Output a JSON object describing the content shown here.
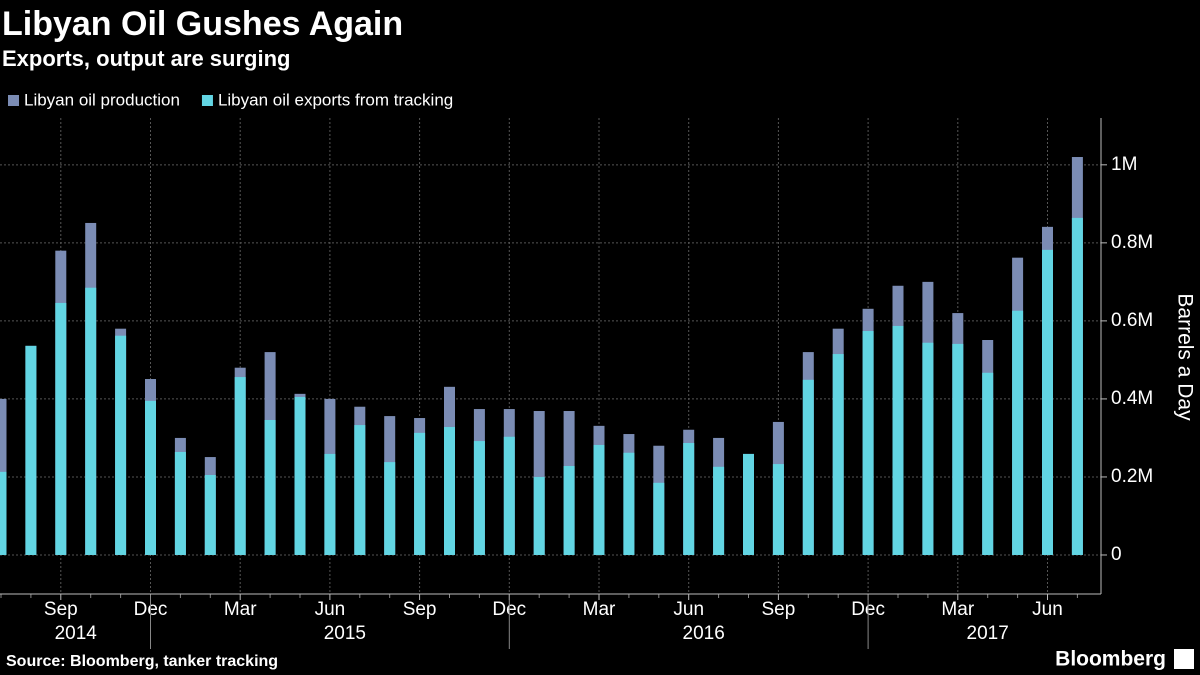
{
  "chart_data": {
    "type": "overlap_bar",
    "title": "Libyan Oil Gushes Again",
    "subtitle": "Exports, output are surging",
    "y_axis_label": "Barrels a Day",
    "source": "Source: Bloomberg, tanker tracking",
    "brand": "Bloomberg",
    "categories": [
      null,
      null,
      "Sep",
      null,
      null,
      "Dec",
      null,
      null,
      "Mar",
      null,
      null,
      "Jun",
      null,
      null,
      "Sep",
      null,
      null,
      "Dec",
      null,
      null,
      "Mar",
      null,
      null,
      "Jun",
      null,
      null,
      "Sep",
      null,
      null,
      "Dec",
      null,
      null,
      "Mar",
      null,
      null,
      "Jun",
      null
    ],
    "years": [
      "2014",
      null,
      null,
      null,
      null,
      null,
      "2015",
      null,
      null,
      null,
      null,
      null,
      null,
      null,
      null,
      null,
      null,
      null,
      "2016",
      null,
      null,
      null,
      null,
      null,
      null,
      null,
      null,
      null,
      null,
      null,
      "2017",
      null,
      null,
      null,
      null,
      null,
      null
    ],
    "series": [
      {
        "name": "Libyan oil production",
        "color": "#7b8cb4",
        "values": [
          400000,
          536000,
          780000,
          851000,
          580000,
          451000,
          300000,
          251000,
          480000,
          520000,
          413000,
          400000,
          380000,
          356000,
          351000,
          431000,
          374000,
          374000,
          369000,
          369000,
          331000,
          310000,
          280000,
          321000,
          300000,
          259000,
          341000,
          520000,
          580000,
          631000,
          690000,
          700000,
          620000,
          551000,
          762000,
          841000,
          1020000
        ]
      },
      {
        "name": "Libyan oil exports from tracking",
        "color": "#62d5e3",
        "values": [
          213000,
          536000,
          646000,
          685000,
          562000,
          395000,
          264000,
          205000,
          456000,
          346000,
          405000,
          259000,
          333000,
          238000,
          313000,
          328000,
          292000,
          303000,
          200000,
          228000,
          282000,
          262000,
          185000,
          287000,
          226000,
          259000,
          233000,
          449000,
          515000,
          574000,
          587000,
          544000,
          541000,
          467000,
          626000,
          782000,
          864000
        ]
      }
    ],
    "ylim": [
      -100000,
      1120000
    ],
    "yticks": [
      0,
      {
        "value": 200000,
        "label": "0.2M"
      },
      {
        "value": 400000,
        "label": "0.4M"
      },
      {
        "value": 600000,
        "label": "0.6M"
      },
      {
        "value": 800000,
        "label": "0.8M"
      },
      {
        "value": 1000000,
        "label": "1M"
      }
    ],
    "grid": true
  }
}
